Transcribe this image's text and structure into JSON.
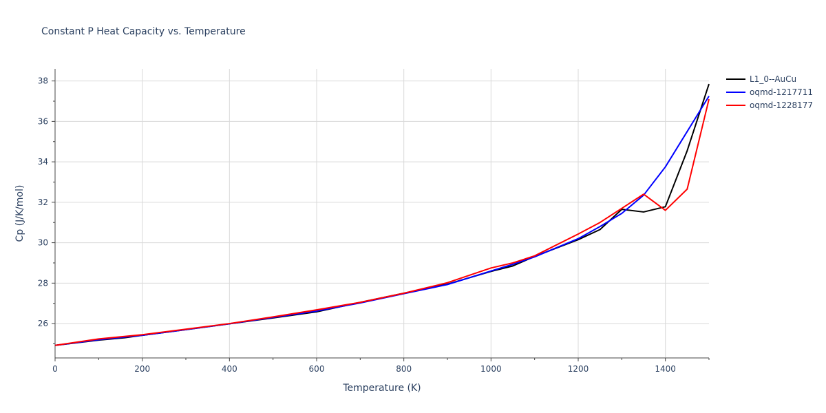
{
  "chart_data": {
    "type": "line",
    "title": "Constant P Heat Capacity vs. Temperature",
    "xlabel": "Temperature (K)",
    "ylabel": "Cp (J/K/mol)",
    "xlim": [
      0,
      1500
    ],
    "ylim": [
      24.3,
      38.6
    ],
    "xticks": [
      0,
      200,
      400,
      600,
      800,
      1000,
      1200,
      1400
    ],
    "yticks": [
      26,
      28,
      30,
      32,
      34,
      36,
      38
    ],
    "grid": true,
    "legend_position": "top-right",
    "series": [
      {
        "name": "L1_0--AuCu",
        "color": "#000000",
        "x": [
          0,
          100,
          160,
          200,
          300,
          400,
          500,
          600,
          700,
          800,
          900,
          1000,
          1050,
          1100,
          1200,
          1250,
          1300,
          1350,
          1400,
          1450,
          1500
        ],
        "y": [
          24.92,
          25.18,
          25.3,
          25.42,
          25.7,
          25.99,
          26.28,
          26.58,
          27.05,
          27.5,
          27.95,
          28.58,
          28.85,
          29.32,
          30.15,
          30.65,
          31.65,
          31.52,
          31.78,
          34.55,
          37.85
        ]
      },
      {
        "name": "oqmd-1217711",
        "color": "#0000ff",
        "x": [
          0,
          100,
          200,
          300,
          400,
          500,
          600,
          700,
          800,
          900,
          1000,
          1050,
          1100,
          1200,
          1250,
          1300,
          1350,
          1400,
          1450,
          1500
        ],
        "y": [
          24.92,
          25.2,
          25.42,
          25.7,
          25.99,
          26.3,
          26.62,
          27.02,
          27.48,
          27.93,
          28.6,
          28.93,
          29.3,
          30.2,
          30.8,
          31.45,
          32.35,
          33.75,
          35.5,
          37.25
        ]
      },
      {
        "name": "oqmd-1228177",
        "color": "#ff0000",
        "x": [
          0,
          100,
          200,
          300,
          400,
          500,
          600,
          700,
          800,
          900,
          1000,
          1050,
          1100,
          1200,
          1250,
          1300,
          1350,
          1400,
          1450,
          1500
        ],
        "y": [
          24.92,
          25.24,
          25.45,
          25.72,
          26.0,
          26.33,
          26.68,
          27.05,
          27.5,
          28.02,
          28.75,
          29.0,
          29.35,
          30.43,
          31.0,
          31.7,
          32.4,
          31.6,
          32.65,
          37.1
        ]
      }
    ]
  }
}
